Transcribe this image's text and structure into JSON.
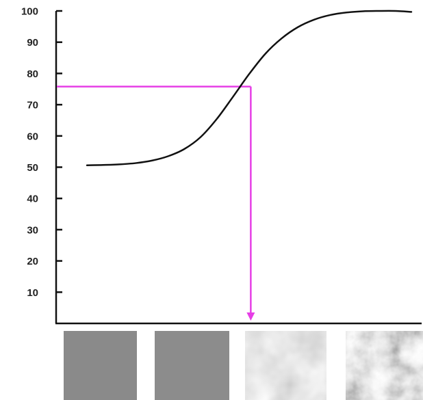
{
  "chart_data": {
    "type": "line",
    "title": "",
    "xlabel": "",
    "ylabel": "",
    "ylim": [
      0,
      100
    ],
    "yticks": [
      "10",
      "20",
      "30",
      "40",
      "50",
      "60",
      "70",
      "80",
      "90",
      "100"
    ],
    "grid": false,
    "series": [
      {
        "color": "#111111",
        "x": [
          0.0,
          0.05,
          0.1,
          0.15,
          0.2,
          0.25,
          0.3,
          0.35,
          0.4,
          0.45,
          0.5,
          0.55,
          0.6,
          0.65,
          0.7,
          0.75,
          0.8,
          0.85,
          0.9,
          0.95,
          1.0
        ],
        "values": [
          50.6,
          50.7,
          50.9,
          51.3,
          52.1,
          53.5,
          55.8,
          59.6,
          65.4,
          72.5,
          79.8,
          86.3,
          91.2,
          94.8,
          97.2,
          98.7,
          99.5,
          99.9,
          100.0,
          100.0,
          99.7
        ]
      }
    ],
    "annotation": {
      "color": "#e63ee6",
      "y_value": 75.8,
      "x_value": 0.505,
      "arrow": "down"
    },
    "thumbnails": [
      {
        "name": "texture-1",
        "base": "#8a8a8a"
      },
      {
        "name": "texture-2",
        "base": "#8c8c8c"
      },
      {
        "name": "texture-3",
        "base": "#9a9a9a"
      },
      {
        "name": "texture-4",
        "base": "#a0a0a0"
      }
    ]
  }
}
